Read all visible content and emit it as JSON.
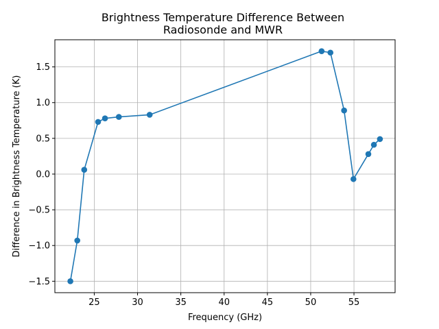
{
  "chart_data": {
    "type": "line",
    "title_line1": "Brightness Temperature Difference Between",
    "title_line2": "Radiosonde and MWR",
    "xlabel": "Frequency (GHz)",
    "ylabel": "Difference in Brightness Temperature (K)",
    "xlim": [
      20.45,
      59.75
    ],
    "ylim": [
      -1.66,
      1.88
    ],
    "x_ticks": [
      25,
      30,
      35,
      40,
      45,
      50,
      55
    ],
    "x_tick_labels": [
      "25",
      "30",
      "35",
      "40",
      "45",
      "50",
      "55"
    ],
    "y_ticks": [
      -1.5,
      -1.0,
      -0.5,
      0.0,
      0.5,
      1.0,
      1.5
    ],
    "y_tick_labels": [
      "−1.5",
      "−1.0",
      "−0.5",
      "0.0",
      "0.5",
      "1.0",
      "1.5"
    ],
    "grid": true,
    "series": [
      {
        "color": "#1f77b4",
        "marker": "circle",
        "points": [
          {
            "x": 22.24,
            "y": -1.5
          },
          {
            "x": 23.04,
            "y": -0.93
          },
          {
            "x": 23.84,
            "y": 0.06
          },
          {
            "x": 25.44,
            "y": 0.73
          },
          {
            "x": 26.24,
            "y": 0.78
          },
          {
            "x": 27.84,
            "y": 0.8
          },
          {
            "x": 31.4,
            "y": 0.83
          },
          {
            "x": 51.26,
            "y": 1.72
          },
          {
            "x": 52.28,
            "y": 1.7
          },
          {
            "x": 53.86,
            "y": 0.89
          },
          {
            "x": 54.94,
            "y": -0.07
          },
          {
            "x": 56.66,
            "y": 0.28
          },
          {
            "x": 57.3,
            "y": 0.41
          },
          {
            "x": 58.0,
            "y": 0.49
          }
        ]
      }
    ]
  }
}
